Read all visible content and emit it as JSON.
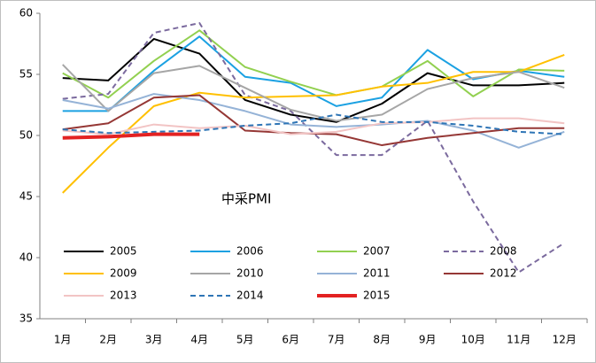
{
  "chart_data": {
    "type": "line",
    "annotation": "中采PMI",
    "categories": [
      "1月",
      "2月",
      "3月",
      "4月",
      "5月",
      "6月",
      "7月",
      "8月",
      "9月",
      "10月",
      "11月",
      "12月"
    ],
    "ylim": [
      35,
      60
    ],
    "yticks": [
      35,
      40,
      45,
      50,
      55,
      60
    ],
    "legend": "inside-lower-left",
    "series": [
      {
        "name": "2005",
        "color": "#000000",
        "values": [
          54.7,
          54.5,
          57.9,
          56.7,
          52.9,
          51.7,
          51.1,
          52.6,
          55.1,
          54.1,
          54.1,
          54.3
        ]
      },
      {
        "name": "2006",
        "color": "#1ba1e2",
        "values": [
          52.0,
          52.0,
          55.3,
          58.1,
          54.8,
          54.3,
          52.4,
          53.1,
          57.0,
          54.6,
          55.3,
          54.8
        ]
      },
      {
        "name": "2007",
        "color": "#92d050",
        "values": [
          55.1,
          53.1,
          56.1,
          58.6,
          55.6,
          54.4,
          53.3,
          54.0,
          56.1,
          53.2,
          55.4,
          55.3
        ]
      },
      {
        "name": "2008",
        "color": "#7b6a9e",
        "dashed": true,
        "values": [
          53.0,
          53.4,
          58.4,
          59.2,
          53.3,
          52.0,
          48.4,
          48.4,
          51.2,
          44.6,
          38.8,
          41.2
        ]
      },
      {
        "name": "2009",
        "color": "#ffc000",
        "values": [
          45.3,
          49.0,
          52.4,
          53.5,
          53.1,
          53.2,
          53.3,
          54.0,
          54.3,
          55.2,
          55.2,
          56.6
        ]
      },
      {
        "name": "2010",
        "color": "#a6a6a6",
        "values": [
          55.8,
          52.0,
          55.1,
          55.7,
          53.9,
          52.1,
          51.2,
          51.7,
          53.8,
          54.7,
          55.2,
          53.9
        ]
      },
      {
        "name": "2011",
        "color": "#95b3d7",
        "values": [
          52.9,
          52.2,
          53.4,
          52.9,
          52.0,
          50.9,
          50.7,
          50.9,
          51.2,
          50.4,
          49.0,
          50.3
        ]
      },
      {
        "name": "2012",
        "color": "#953735",
        "values": [
          50.5,
          51.0,
          53.1,
          53.3,
          50.4,
          50.2,
          50.1,
          49.2,
          49.8,
          50.2,
          50.6,
          50.6
        ]
      },
      {
        "name": "2013",
        "color": "#f2c4c4",
        "values": [
          50.4,
          50.1,
          50.9,
          50.6,
          50.8,
          50.1,
          50.3,
          51.0,
          51.1,
          51.4,
          51.4,
          51.0
        ]
      },
      {
        "name": "2014",
        "color": "#2e75b6",
        "dashed": true,
        "values": [
          50.5,
          50.2,
          50.3,
          50.4,
          50.8,
          51.0,
          51.7,
          51.1,
          51.1,
          50.8,
          50.3,
          50.1
        ]
      },
      {
        "name": "2015",
        "color": "#e32222",
        "thick": true,
        "values": [
          49.8,
          49.9,
          50.1,
          50.1,
          null,
          null,
          null,
          null,
          null,
          null,
          null,
          null
        ]
      }
    ]
  }
}
